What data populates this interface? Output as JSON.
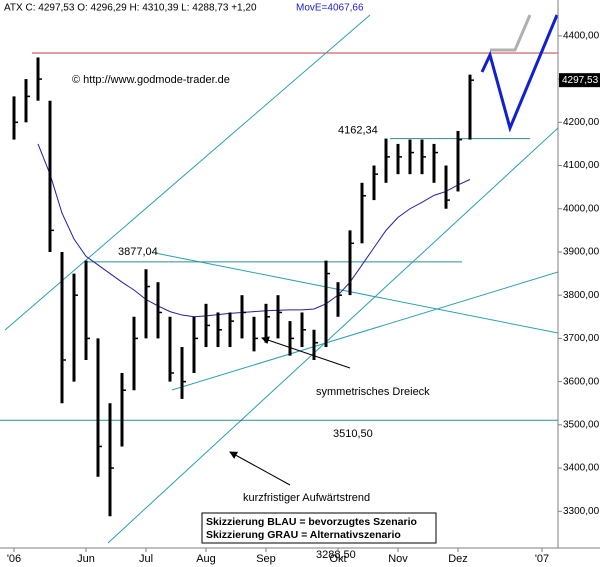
{
  "chart_data": {
    "type": "ohlc",
    "header": "ATX C: 4297,53 O: 4296,29 H: 4310,39 L: 4288,73 +1,20",
    "ma_label": "MovE=4067,66",
    "watermark": "© http://www.godmode-trader.de",
    "categories": [
      "'06",
      null,
      null,
      null,
      null,
      null,
      "Jun",
      null,
      null,
      null,
      null,
      "Jul",
      null,
      null,
      null,
      null,
      "Aug",
      null,
      null,
      null,
      null,
      "Sep",
      null,
      null,
      null,
      null,
      null,
      "Okt",
      null,
      null,
      null,
      null,
      "Nov",
      null,
      null,
      null,
      null,
      "Dez",
      null,
      null,
      null,
      null,
      null,
      null,
      "'07"
    ],
    "high": [
      4260,
      4300,
      4350,
      4250,
      3900,
      3850,
      3880,
      3700,
      3550,
      3620,
      3750,
      3860,
      3830,
      3750,
      3680,
      3750,
      3780,
      3760,
      3760,
      3800,
      3750,
      3780,
      3800,
      3740,
      3760,
      3720,
      3880,
      3830,
      3950,
      4060,
      4100,
      4162.34,
      4150,
      4160,
      4160,
      4150,
      4100,
      4180,
      4310.39,
      null,
      null,
      null,
      null,
      null,
      null
    ],
    "low": [
      4160,
      4200,
      4250,
      3900,
      3550,
      3600,
      3650,
      3380,
      3288.5,
      3450,
      3580,
      3700,
      3700,
      3600,
      3560,
      3620,
      3680,
      3680,
      3680,
      3700,
      3670,
      3690,
      3700,
      3660,
      3680,
      3650,
      3680,
      3750,
      3800,
      3920,
      4020,
      4060,
      4080,
      4080,
      4080,
      4060,
      4000,
      4040,
      4160,
      null,
      null,
      null,
      null,
      null,
      null
    ],
    "close": [
      4200,
      4260,
      4300,
      3950,
      3650,
      3800,
      3700,
      3450,
      3400,
      3580,
      3700,
      3820,
      3760,
      3620,
      3600,
      3700,
      3730,
      3720,
      3740,
      3760,
      3700,
      3750,
      3760,
      3700,
      3720,
      3690,
      3850,
      3800,
      3920,
      4030,
      4080,
      4120,
      4120,
      4130,
      4120,
      4130,
      4020,
      4160,
      4297.53,
      null,
      null,
      null,
      null,
      null,
      null
    ],
    "color": "#000000",
    "ma": {
      "color": "#2020a0",
      "values": [
        null,
        null,
        4150,
        4080,
        3990,
        3930,
        3890,
        3870,
        3850,
        3830,
        3812,
        3790,
        3775,
        3762,
        3754,
        3750,
        3752,
        3755,
        3758,
        3760,
        3762,
        3764,
        3765,
        3766,
        3766,
        3768,
        3780,
        3800,
        3830,
        3870,
        3910,
        3950,
        3980,
        4000,
        4015,
        4031,
        4040,
        4055,
        4067.66,
        null,
        null,
        null,
        null,
        null,
        null
      ]
    },
    "ylim": [
      3215,
      4483
    ],
    "yticks": [
      {
        "value": 3300,
        "label": "3300,00"
      },
      {
        "value": 3400,
        "label": "3400,00"
      },
      {
        "value": 3500,
        "label": "3500,00"
      },
      {
        "value": 3600,
        "label": "3600,00"
      },
      {
        "value": 3700,
        "label": "3700,00"
      },
      {
        "value": 3800,
        "label": "3800,00"
      },
      {
        "value": 3900,
        "label": "3900,00"
      },
      {
        "value": 4000,
        "label": "4000,00"
      },
      {
        "value": 4100,
        "label": "4100,00"
      },
      {
        "value": 4200,
        "label": "4200,00"
      },
      {
        "value": 4300,
        "label": "4300,00"
      },
      {
        "value": 4400,
        "label": "4400,00"
      }
    ],
    "last_price_label": "4297,53",
    "levels": [
      {
        "value": 4162.34,
        "label": "4162,34"
      },
      {
        "value": 3877.04,
        "label": "3877,04"
      },
      {
        "value": 3510.5,
        "label": "3510,50"
      }
    ],
    "annotations": [
      "symmetrisches Dreieck",
      "kurzfristiger Aufwärtstrend",
      "3288,50"
    ],
    "scenario_box": [
      "Skizzierung BLAU = bevorzugtes Szenario",
      "Skizzierung GRAU = Alternativszenario"
    ]
  }
}
